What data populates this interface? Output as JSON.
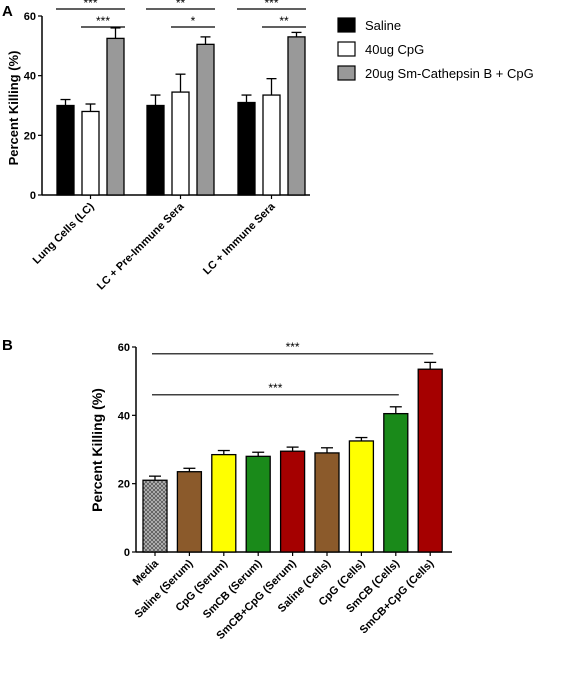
{
  "panels": [
    {
      "label": "A",
      "chart_data": {
        "type": "bar",
        "ylabel": "Percent Killing (%)",
        "ylim": [
          0,
          60
        ],
        "yticks": [
          0,
          20,
          40,
          60
        ],
        "categories": [
          "Lung Cells (LC)",
          "LC + Pre-Immune Sera",
          "LC + Immune Sera"
        ],
        "series": [
          {
            "name": "Saline",
            "values": [
              30,
              30,
              31
            ],
            "errors": [
              2,
              3.5,
              2.5
            ],
            "color": "#000000"
          },
          {
            "name": "40ug CpG",
            "values": [
              28,
              34.5,
              33.5
            ],
            "errors": [
              2.5,
              6,
              5.5
            ],
            "color": "#ffffff"
          },
          {
            "name": "20ug Sm-Cathepsin B + CpG",
            "values": [
              52.5,
              50.5,
              53
            ],
            "errors": [
              3.5,
              2.5,
              1.5
            ],
            "color": "#999999"
          }
        ],
        "legend_position": "right",
        "annotations": [
          {
            "text": "***",
            "group": 0,
            "from": 0,
            "to": 2,
            "level": 0
          },
          {
            "text": "***",
            "group": 0,
            "from": 1,
            "to": 2,
            "level": 1
          },
          {
            "text": "**",
            "group": 1,
            "from": 0,
            "to": 2,
            "level": 0
          },
          {
            "text": "*",
            "group": 1,
            "from": 1,
            "to": 2,
            "level": 1
          },
          {
            "text": "***",
            "group": 2,
            "from": 0,
            "to": 2,
            "level": 0
          },
          {
            "text": "**",
            "group": 2,
            "from": 1,
            "to": 2,
            "level": 1
          }
        ]
      }
    },
    {
      "label": "B",
      "chart_data": {
        "type": "bar",
        "ylabel": "Percent Killing (%)",
        "ylim": [
          0,
          60
        ],
        "yticks": [
          0,
          20,
          40,
          60
        ],
        "categories": [
          "Media",
          "Saline (Serum)",
          "CpG (Serum)",
          "SmCB (Serum)",
          "SmCB+CpG (Serum)",
          "Saline (Cells)",
          "CpG (Cells)",
          "SmCB (Cells)",
          "SmCB+CpG (Cells)"
        ],
        "values": [
          21,
          23.5,
          28.5,
          28,
          29.5,
          29,
          32.5,
          40.5,
          53.5
        ],
        "errors": [
          1.2,
          1,
          1.2,
          1.2,
          1.2,
          1.5,
          1,
          2,
          2
        ],
        "colors": [
          "#9a9a9a",
          "#8b5a2b",
          "#ffff00",
          "#1a8a1a",
          "#a50000",
          "#8b5a2b",
          "#ffff00",
          "#1a8a1a",
          "#a50000"
        ],
        "annotations": [
          {
            "text": "***",
            "from": 0,
            "to": 8,
            "y": 58
          },
          {
            "text": "***",
            "from": 0,
            "to": 7,
            "y": 46
          }
        ]
      }
    }
  ]
}
